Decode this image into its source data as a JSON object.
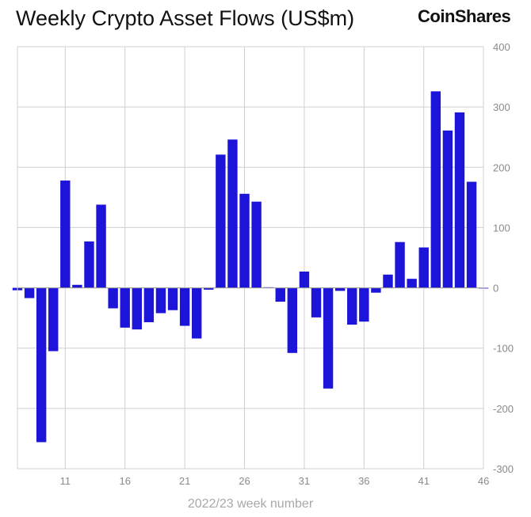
{
  "header": {
    "title": "Weekly Crypto Asset Flows (US$m)",
    "brand": "CoinShares"
  },
  "colors": {
    "bar": "#1c14d8",
    "grid": "#d0d0d0",
    "axis_text": "#8a8a8a",
    "title_text": "#111111"
  },
  "chart_data": {
    "type": "bar",
    "title": "Weekly Crypto Asset Flows (US$m)",
    "xlabel": "2022/23 week number",
    "ylabel": "",
    "ylim": [
      -300,
      400
    ],
    "yticks": [
      400,
      300,
      200,
      100,
      0,
      -100,
      -200,
      -300
    ],
    "xticks": [
      11,
      16,
      21,
      26,
      31,
      36,
      41,
      46
    ],
    "grid": true,
    "y_axis_side": "right",
    "categories": [
      7,
      8,
      9,
      10,
      11,
      12,
      13,
      14,
      15,
      16,
      17,
      18,
      19,
      20,
      21,
      22,
      23,
      24,
      25,
      26,
      27,
      28,
      29,
      30,
      31,
      32,
      33,
      34,
      35,
      36,
      37,
      38,
      39,
      40,
      41,
      42,
      43,
      44,
      45,
      46
    ],
    "values": [
      -4,
      -17,
      -256,
      -105,
      178,
      5,
      77,
      138,
      -34,
      -66,
      -69,
      -57,
      -42,
      -37,
      -63,
      -84,
      -3,
      221,
      246,
      156,
      143,
      1,
      -23,
      -108,
      27,
      -49,
      -167,
      -5,
      -61,
      -56,
      -8,
      22,
      76,
      15,
      67,
      326,
      261,
      291,
      176,
      0
    ]
  }
}
